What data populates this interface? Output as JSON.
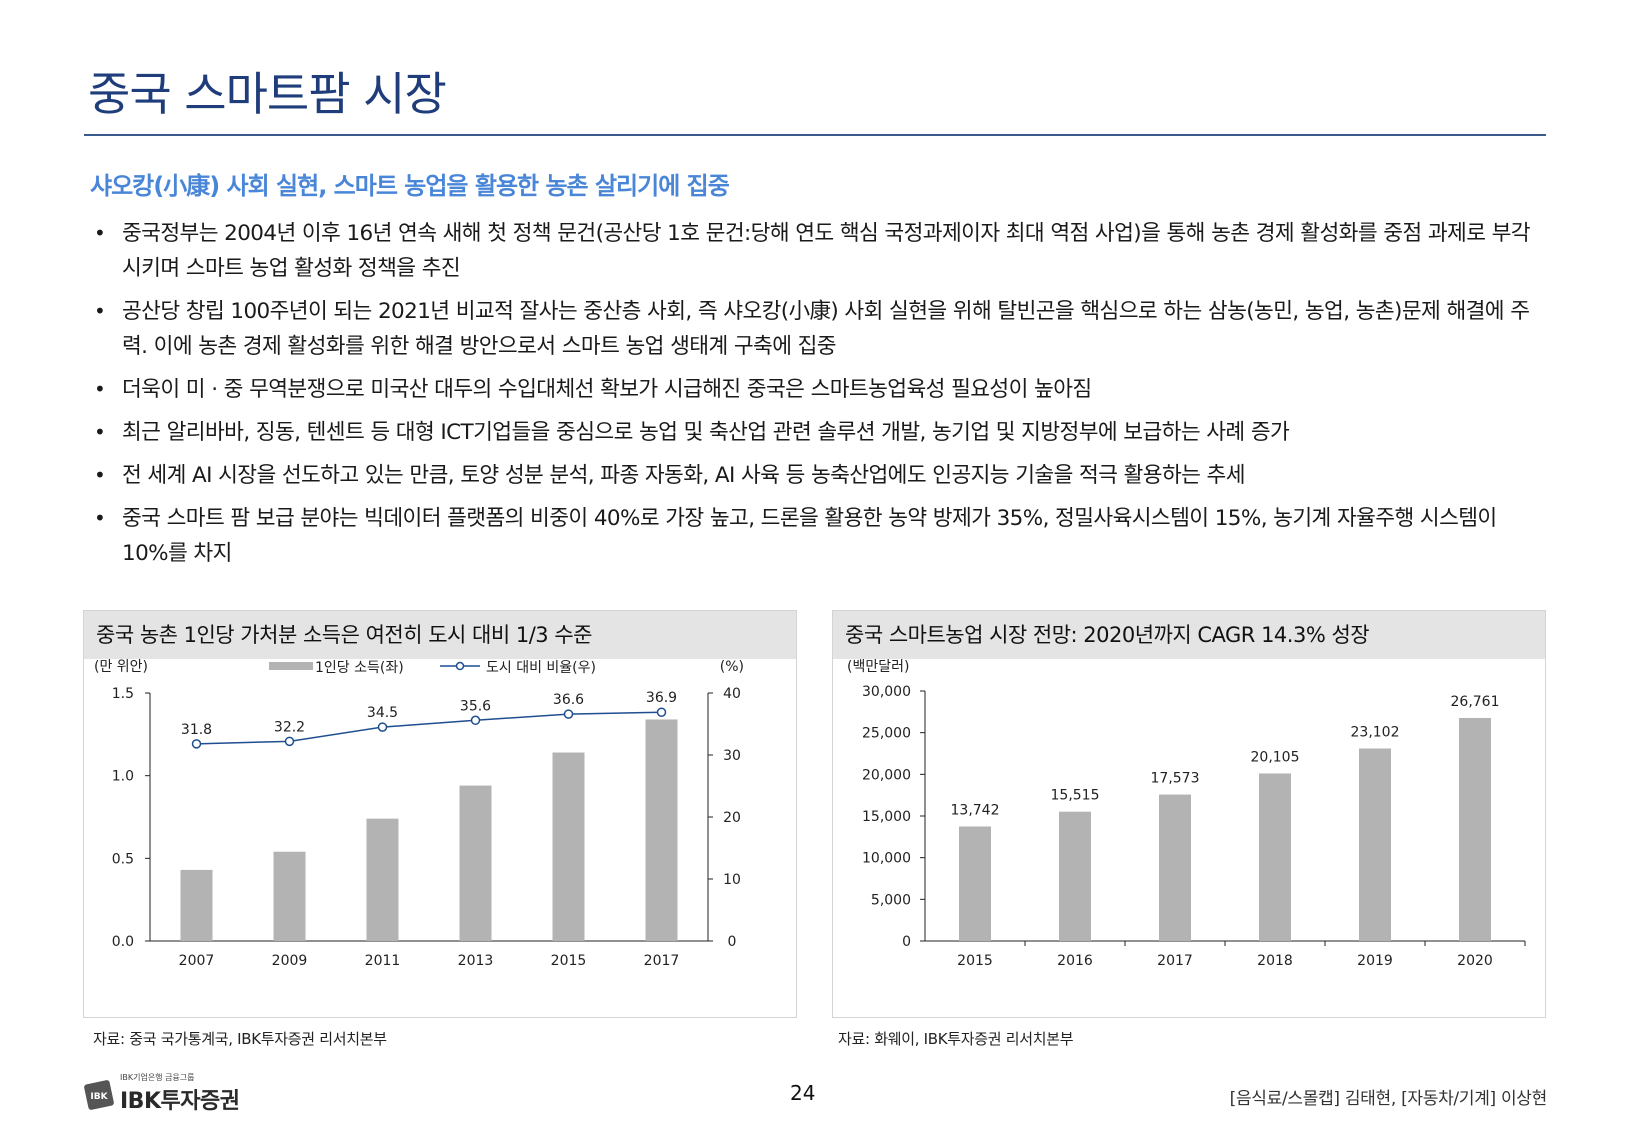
{
  "page": {
    "title": "중국 스마트팜 시장",
    "subtitle": "샤오캉(小康) 사회 실현, 스마트 농업을 활용한 농촌 살리기에 집중",
    "bullets": [
      "중국정부는 2004년 이후 16년 연속 새해 첫 정책 문건(공산당 1호 문건:당해 연도 핵심 국정과제이자 최대 역점 사업)을 통해 농촌 경제 활성화를 중점 과제로 부각시키며 스마트 농업 활성화 정책을 추진",
      "공산당 창립 100주년이 되는 2021년 비교적 잘사는 중산층 사회, 즉 샤오캉(小康) 사회 실현을 위해 탈빈곤을 핵심으로 하는 삼농(농민, 농업, 농촌)문제 해결에 주력. 이에 농촌 경제 활성화를 위한 해결 방안으로서 스마트 농업 생태계 구축에 집중",
      "더욱이 미 · 중 무역분쟁으로 미국산 대두의 수입대체선 확보가 시급해진 중국은 스마트농업육성 필요성이 높아짐",
      "최근 알리바바, 징동, 텐센트 등 대형 ICT기업들을 중심으로 농업 및 축산업 관련 솔루션 개발, 농기업 및 지방정부에 보급하는 사례 증가",
      "전 세계 AI 시장을 선도하고 있는 만큼, 토양 성분 분석, 파종 자동화, AI 사육 등 농축산업에도 인공지능 기술을 적극 활용하는 추세",
      "중국 스마트 팜 보급 분야는 빅데이터 플랫폼의 비중이 40%로 가장 높고, 드론을 활용한 농약 방제가 35%, 정밀사육시스템이 15%, 농기계 자율주행 시스템이 10%를 차지"
    ],
    "page_number": "24",
    "analysts": "[음식료/스몰캡] 김태현, [자동차/기계] 이상현",
    "logo": {
      "tagline": "IBK기업은행 금융그룹",
      "name": "IBK투자증권",
      "mark": "IBK"
    }
  },
  "colors": {
    "title": "#1f3d7a",
    "subtitle": "#4a86d8",
    "bar": "#b3b3b3",
    "line": "#1f4e8f",
    "panel_header": "#e4e4e4"
  },
  "chart_data": [
    {
      "type": "bar+line",
      "title": "중국 농촌 1인당 가처분 소득은 여전히 도시 대비 1/3 수준",
      "source": "자료: 중국 국가통계국, IBK투자증권 리서치본부",
      "ylabel_left": "(만 위안)",
      "ylabel_right": "(%)",
      "categories": [
        "2007",
        "2009",
        "2011",
        "2013",
        "2015",
        "2017"
      ],
      "series": [
        {
          "name": "1인당 소득(좌)",
          "type": "bar",
          "axis": "left",
          "values": [
            0.43,
            0.54,
            0.74,
            0.94,
            1.14,
            1.34
          ]
        },
        {
          "name": "도시 대비 비율(우)",
          "type": "line",
          "axis": "right",
          "values": [
            31.8,
            32.2,
            34.5,
            35.6,
            36.6,
            36.9
          ],
          "labels": [
            "31.8",
            "32.2",
            "34.5",
            "35.6",
            "36.6",
            "36.9"
          ]
        }
      ],
      "ylim_left": [
        0,
        1.5
      ],
      "yticks_left": [
        "0.0",
        "0.5",
        "1.0",
        "1.5"
      ],
      "ylim_right": [
        0,
        40
      ],
      "yticks_right": [
        "0",
        "10",
        "20",
        "30",
        "40"
      ],
      "legend": "top-center"
    },
    {
      "type": "bar",
      "title": "중국 스마트농업 시장 전망: 2020년까지 CAGR 14.3% 성장",
      "source": "자료: 화웨이, IBK투자증권 리서치본부",
      "ylabel": "(백만달러)",
      "categories": [
        "2015",
        "2016",
        "2017",
        "2018",
        "2019",
        "2020"
      ],
      "values": [
        13742,
        15515,
        17573,
        20105,
        23102,
        26761
      ],
      "labels": [
        "13,742",
        "15,515",
        "17,573",
        "20,105",
        "23,102",
        "26,761"
      ],
      "ylim": [
        0,
        30000
      ],
      "yticks": [
        "0",
        "5,000",
        "10,000",
        "15,000",
        "20,000",
        "25,000",
        "30,000"
      ]
    }
  ]
}
